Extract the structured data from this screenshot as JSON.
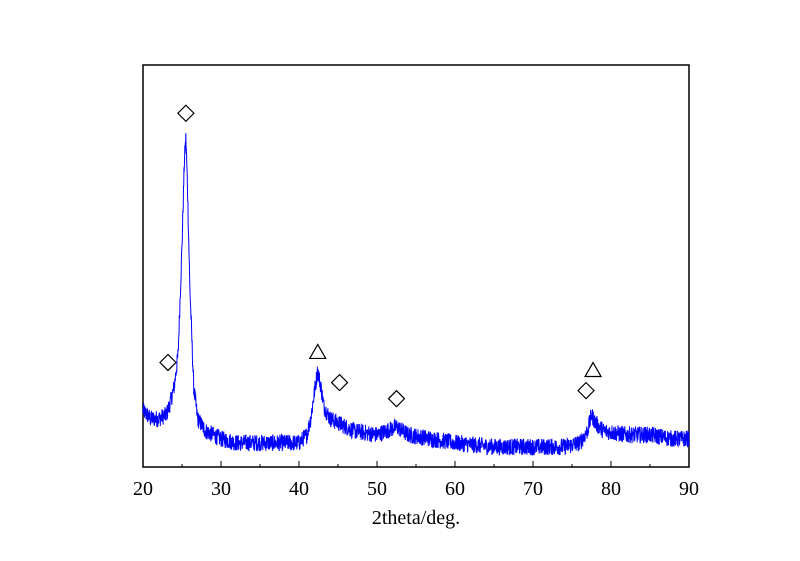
{
  "chart_data": {
    "type": "line",
    "title": "",
    "xlabel": "2theta/deg.",
    "ylabel": "",
    "xlim": [
      20,
      90
    ],
    "ylim": [
      0,
      100
    ],
    "xticks": [
      "20",
      "30",
      "40",
      "50",
      "60",
      "70",
      "80",
      "90"
    ],
    "yticks": [],
    "grid": false,
    "line_color": "#0000ff",
    "series": [
      {
        "points": [
          [
            20.0,
            14
          ],
          [
            21.0,
            12
          ],
          [
            22.0,
            12
          ],
          [
            23.0,
            13
          ],
          [
            23.5,
            16
          ],
          [
            24.0,
            20
          ],
          [
            24.5,
            28
          ],
          [
            25.0,
            55
          ],
          [
            25.3,
            76
          ],
          [
            25.5,
            82
          ],
          [
            25.7,
            70
          ],
          [
            26.0,
            45
          ],
          [
            26.5,
            20
          ],
          [
            27.0,
            12
          ],
          [
            28.0,
            9
          ],
          [
            30.0,
            7
          ],
          [
            32.0,
            6
          ],
          [
            35.0,
            6
          ],
          [
            38.0,
            6
          ],
          [
            40.0,
            6
          ],
          [
            41.0,
            8
          ],
          [
            41.5,
            12
          ],
          [
            42.0,
            19
          ],
          [
            42.4,
            24
          ],
          [
            42.8,
            20
          ],
          [
            43.2,
            15
          ],
          [
            44.0,
            12
          ],
          [
            45.0,
            11
          ],
          [
            47.0,
            9
          ],
          [
            50.0,
            8
          ],
          [
            52.5,
            10
          ],
          [
            54.0,
            8
          ],
          [
            57.0,
            7
          ],
          [
            60.0,
            6
          ],
          [
            65.0,
            5
          ],
          [
            70.0,
            5
          ],
          [
            74.0,
            5
          ],
          [
            76.0,
            6
          ],
          [
            77.0,
            9
          ],
          [
            77.5,
            13
          ],
          [
            78.0,
            11
          ],
          [
            79.0,
            9
          ],
          [
            82.0,
            8
          ],
          [
            85.0,
            8
          ],
          [
            88.0,
            7
          ],
          [
            90.0,
            7
          ]
        ]
      }
    ],
    "markers": [
      {
        "symbol": "diamond",
        "x": 25.5,
        "y": 88
      },
      {
        "symbol": "diamond",
        "x": 23.2,
        "y": 26
      },
      {
        "symbol": "triangle",
        "x": 42.4,
        "y": 28.5
      },
      {
        "symbol": "diamond",
        "x": 45.2,
        "y": 21
      },
      {
        "symbol": "diamond",
        "x": 52.5,
        "y": 17
      },
      {
        "symbol": "diamond",
        "x": 76.8,
        "y": 19
      },
      {
        "symbol": "triangle",
        "x": 77.7,
        "y": 24
      }
    ]
  }
}
